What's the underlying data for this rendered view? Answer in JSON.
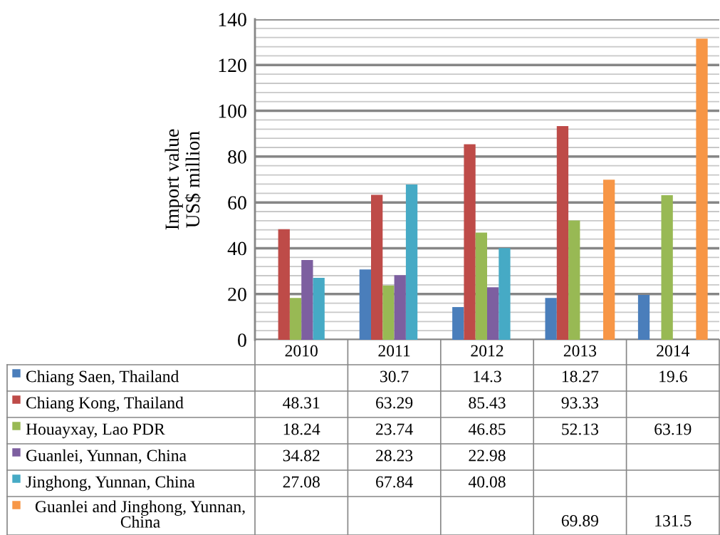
{
  "chart_data": {
    "type": "bar",
    "ylabel": "Import value\nUS$ million",
    "categories": [
      "2010",
      "2011",
      "2012",
      "2013",
      "2014"
    ],
    "series": [
      {
        "name": "Chiang Saen, Thailand",
        "color": "#4a7ebb",
        "values": [
          null,
          30.7,
          14.3,
          18.27,
          19.6
        ]
      },
      {
        "name": "Chiang Kong, Thailand",
        "color": "#be4b48",
        "values": [
          48.31,
          63.29,
          85.43,
          93.33,
          null
        ]
      },
      {
        "name": "Houayxay, Lao PDR",
        "color": "#98b954",
        "values": [
          18.24,
          23.74,
          46.85,
          52.13,
          63.19
        ]
      },
      {
        "name": "Guanlei, Yunnan, China",
        "color": "#7d5fa0",
        "values": [
          34.82,
          28.23,
          22.98,
          null,
          null
        ]
      },
      {
        "name": "Jinghong, Yunnan, China",
        "color": "#46aac5",
        "values": [
          27.08,
          67.84,
          40.08,
          null,
          null
        ]
      },
      {
        "name": "Guanlei and Jinghong, Yunnan,\nChina",
        "color": "#f79646",
        "values": [
          null,
          null,
          null,
          69.89,
          131.5
        ]
      }
    ],
    "ylim": [
      0,
      140
    ],
    "yticks": [
      0,
      {
        "value": 4,
        "label": null
      },
      {
        "value": 8,
        "label": null
      },
      {
        "value": 12,
        "label": null
      },
      {
        "value": 16,
        "label": null
      },
      20,
      {
        "value": 24,
        "label": null
      },
      {
        "value": 28,
        "label": null
      },
      {
        "value": 32,
        "label": null
      },
      {
        "value": 36,
        "label": null
      },
      40,
      {
        "value": 44,
        "label": null
      },
      {
        "value": 48,
        "label": null
      },
      {
        "value": 52,
        "label": null
      },
      {
        "value": 56,
        "label": null
      },
      60,
      {
        "value": 64,
        "label": null
      },
      {
        "value": 68,
        "label": null
      },
      {
        "value": 72,
        "label": null
      },
      {
        "value": 76,
        "label": null
      },
      80,
      {
        "value": 84,
        "label": null
      },
      {
        "value": 88,
        "label": null
      },
      {
        "value": 92,
        "label": null
      },
      {
        "value": 96,
        "label": null
      },
      100,
      {
        "value": 104,
        "label": null
      },
      {
        "value": 108,
        "label": null
      },
      {
        "value": 112,
        "label": null
      },
      {
        "value": 116,
        "label": null
      },
      120,
      {
        "value": 124,
        "label": null
      },
      {
        "value": 128,
        "label": null
      },
      {
        "value": 132,
        "label": null
      },
      {
        "value": 136,
        "label": null
      },
      140
    ],
    "grid": "y",
    "legend": "bottom",
    "data_labels": true
  }
}
